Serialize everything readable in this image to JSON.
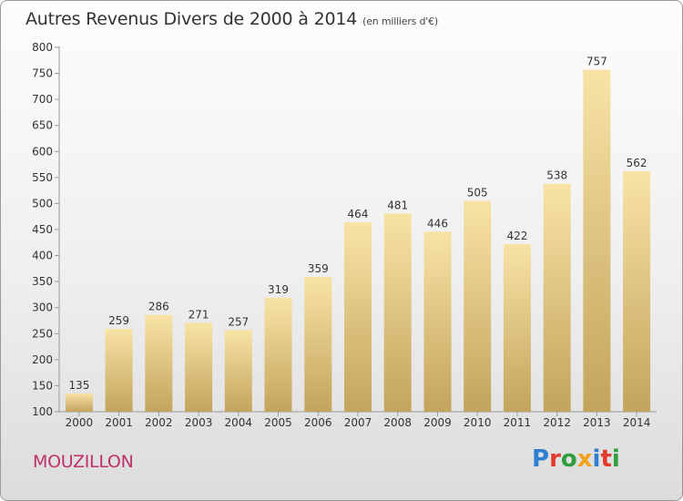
{
  "header": {
    "title": "Autres Revenus Divers de 2000 à 2014",
    "unit": "(en milliers d'€)"
  },
  "footer": {
    "commune": "MOUZILLON",
    "logo_text": "Proxiti"
  },
  "logo_letters": [
    {
      "ch": "P",
      "color": "#2f7fd0"
    },
    {
      "ch": "r",
      "color": "#e23b2e"
    },
    {
      "ch": "o",
      "color": "#2f9e3c"
    },
    {
      "ch": "x",
      "color": "#f0a21a"
    },
    {
      "ch": "i",
      "color": "#2f7fd0"
    },
    {
      "ch": "t",
      "color": "#e23b2e"
    },
    {
      "ch": "i",
      "color": "#2f9e3c"
    }
  ],
  "chart_data": {
    "type": "bar",
    "title": "Autres Revenus Divers de 2000 à 2014",
    "unit": "(en milliers d'€)",
    "categories": [
      "2000",
      "2001",
      "2002",
      "2003",
      "2004",
      "2005",
      "2006",
      "2007",
      "2008",
      "2009",
      "2010",
      "2011",
      "2012",
      "2013",
      "2014"
    ],
    "values": [
      135,
      259,
      286,
      271,
      257,
      319,
      359,
      464,
      481,
      446,
      505,
      422,
      538,
      757,
      562
    ],
    "ylim": [
      100,
      800
    ],
    "yticks": [
      100,
      150,
      200,
      250,
      300,
      350,
      400,
      450,
      500,
      550,
      600,
      650,
      700,
      750,
      800
    ],
    "grid": false,
    "data_labels": true,
    "colors": {
      "bar_light": "#f8e3a6",
      "bar_dark": "#c3a45c",
      "axis": "#9a9a9a",
      "text": "#333333"
    }
  }
}
